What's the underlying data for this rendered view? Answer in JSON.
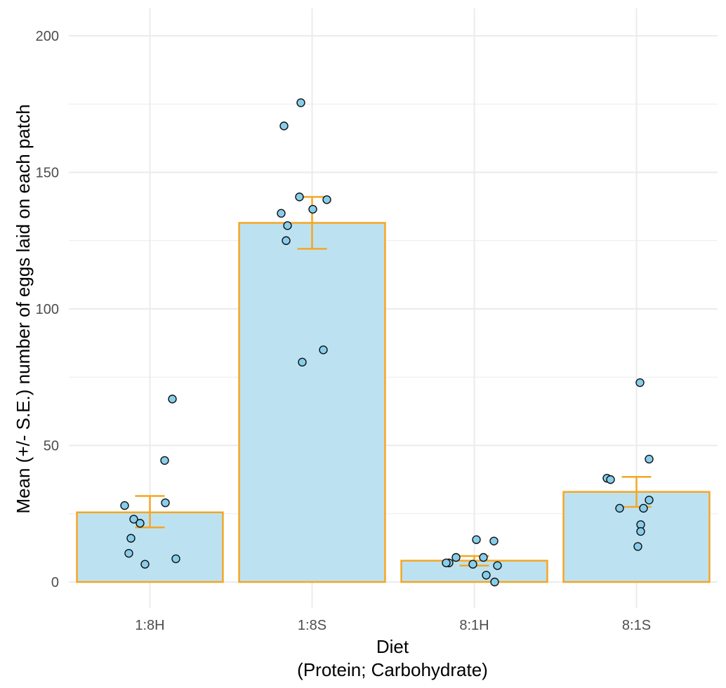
{
  "chart_data": {
    "type": "bar",
    "title": "",
    "xlabel": "Diet",
    "xlabel_sub": "(Protein; Carbohydrate)",
    "ylabel": "Mean (+/- S.E.) number of eggs laid on each patch",
    "categories": [
      "1:8H",
      "1:8S",
      "8:1H",
      "8:1S"
    ],
    "values": [
      25.5,
      131.5,
      7.8,
      33.0
    ],
    "error_low": [
      20.0,
      122.0,
      6.0,
      27.5
    ],
    "error_high": [
      31.5,
      141.0,
      9.5,
      38.5
    ],
    "points": [
      [
        67,
        44.5,
        29,
        28,
        23,
        21.5,
        16,
        10.5,
        8.5,
        6.5
      ],
      [
        175.5,
        167,
        141,
        140,
        136.5,
        135,
        130.5,
        125,
        85,
        80.5
      ],
      [
        15.5,
        15,
        9,
        9,
        7,
        7,
        6.5,
        6,
        2.5,
        0
      ],
      [
        73,
        45,
        38,
        37.5,
        30,
        27,
        27,
        21,
        18.5,
        13
      ]
    ],
    "ylim": [
      -8,
      210
    ],
    "yticks": [
      0,
      50,
      100,
      150,
      200
    ],
    "grid": true,
    "colors": {
      "bar_fill": "#bce2f2",
      "bar_stroke": "#f5a623",
      "point_fill": "#87ceeb",
      "point_stroke": "#111111",
      "grid": "#ebebeb"
    }
  }
}
